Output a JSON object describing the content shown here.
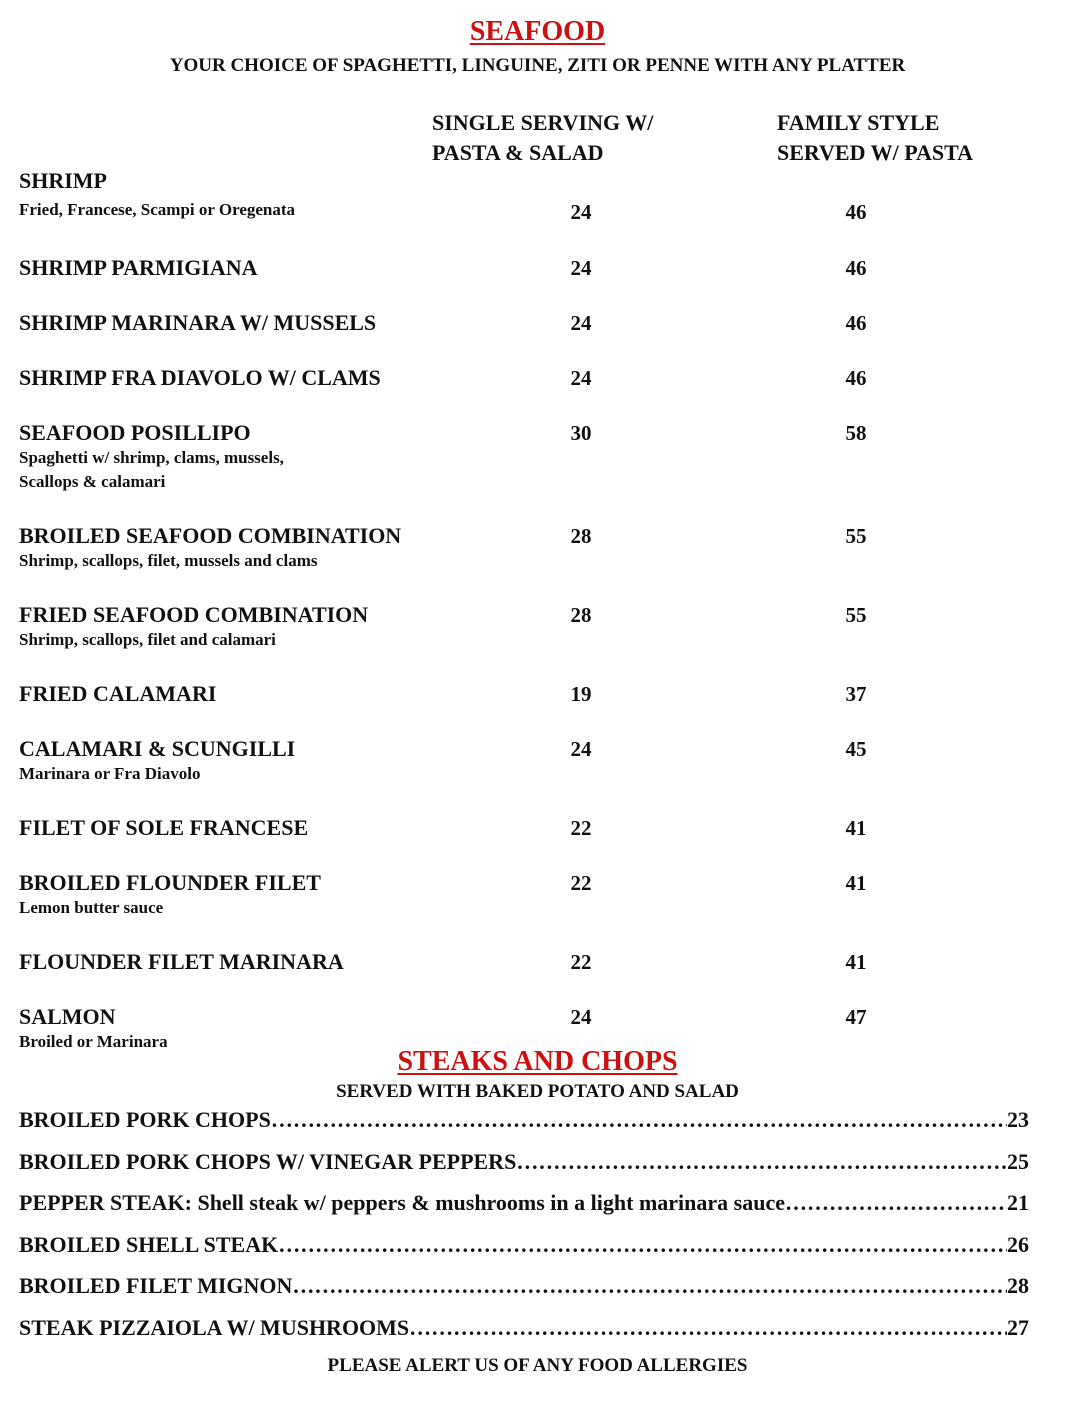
{
  "seafood": {
    "title": "SEAFOOD",
    "subtitle": "YOUR CHOICE OF SPAGHETTI, LINGUINE, ZITI OR PENNE WITH ANY PLATTER",
    "col_single": [
      "SINGLE SERVING W/",
      "PASTA & SALAD"
    ],
    "col_family": [
      "FAMILY STYLE",
      "SERVED W/ PASTA"
    ],
    "items": [
      {
        "name": "SHRIMP",
        "desc": [
          "Fried, Francese, Scampi or Oregenata"
        ],
        "single": "24",
        "family": "46"
      },
      {
        "name": "SHRIMP PARMIGIANA",
        "desc": [],
        "single": "24",
        "family": "46"
      },
      {
        "name": "SHRIMP MARINARA W/ MUSSELS",
        "desc": [],
        "single": "24",
        "family": "46"
      },
      {
        "name": "SHRIMP FRA DIAVOLO W/ CLAMS",
        "desc": [],
        "single": "24",
        "family": "46"
      },
      {
        "name": "SEAFOOD POSILLIPO",
        "desc": [
          "Spaghetti w/ shrimp, clams, mussels,",
          "Scallops & calamari"
        ],
        "single": "30",
        "family": "58"
      },
      {
        "name": "BROILED SEAFOOD COMBINATION",
        "desc": [
          "Shrimp, scallops, filet, mussels and clams"
        ],
        "single": "28",
        "family": "55"
      },
      {
        "name": "FRIED SEAFOOD COMBINATION",
        "desc": [
          "Shrimp, scallops, filet and calamari"
        ],
        "single": "28",
        "family": "55"
      },
      {
        "name": "FRIED CALAMARI",
        "desc": [],
        "single": "19",
        "family": "37"
      },
      {
        "name": "CALAMARI & SCUNGILLI",
        "desc": [
          "Marinara or Fra Diavolo"
        ],
        "single": "24",
        "family": "45"
      },
      {
        "name": "FILET OF SOLE FRANCESE",
        "desc": [],
        "single": "22",
        "family": "41"
      },
      {
        "name": "BROILED FLOUNDER FILET",
        "desc": [
          "Lemon butter sauce"
        ],
        "single": "22",
        "family": "41"
      },
      {
        "name": "FLOUNDER FILET MARINARA",
        "desc": [],
        "single": "22",
        "family": "41"
      },
      {
        "name": "SALMON",
        "desc": [
          "Broiled or Marinara"
        ],
        "single": "24",
        "family": "47"
      }
    ]
  },
  "steaks": {
    "title": "STEAKS AND CHOPS",
    "subtitle": "SERVED WITH BAKED POTATO AND SALAD",
    "items": [
      {
        "name": "BROILED PORK CHOPS",
        "price": "23"
      },
      {
        "name": "BROILED PORK CHOPS W/ VINEGAR PEPPERS",
        "price": "25"
      },
      {
        "name": "PEPPER STEAK: Shell steak w/ peppers & mushrooms in a light marinara sauce",
        "price": "21"
      },
      {
        "name": "BROILED SHELL STEAK",
        "price": "26"
      },
      {
        "name": "BROILED FILET MIGNON",
        "price": "28"
      },
      {
        "name": "STEAK PIZZAIOLA W/ MUSHROOMS",
        "price": "27"
      }
    ]
  },
  "footer": "PLEASE ALERT US OF ANY FOOD ALLERGIES",
  "colors": {
    "heading": "#cc1111",
    "text": "#111111"
  }
}
